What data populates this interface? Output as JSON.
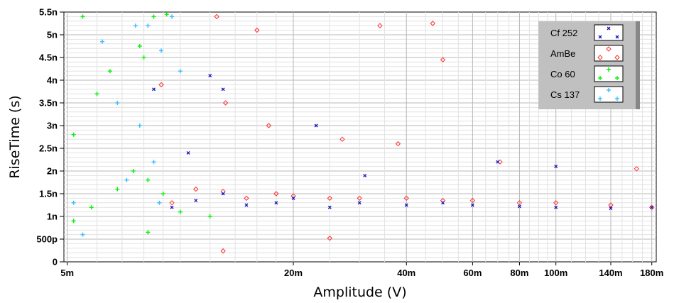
{
  "chart_data": {
    "type": "scatter",
    "title": "",
    "xlabel": "Amplitude (V)",
    "ylabel": "RiseTime (s)",
    "x_scale": "log",
    "xlim": [
      0.0049,
      0.185
    ],
    "ylim": [
      0,
      5.5e-09
    ],
    "grid": true,
    "legend_position": "top-right",
    "x_ticks": [
      {
        "value": 0.005,
        "label": "5m"
      },
      {
        "value": 0.02,
        "label": "20m"
      },
      {
        "value": 0.04,
        "label": "40m"
      },
      {
        "value": 0.06,
        "label": "60m"
      },
      {
        "value": 0.08,
        "label": "80m"
      },
      {
        "value": 0.1,
        "label": "100m"
      },
      {
        "value": 0.14,
        "label": "140m"
      },
      {
        "value": 0.18,
        "label": "180m"
      }
    ],
    "y_ticks": [
      {
        "value": 0,
        "label": "0"
      },
      {
        "value": 5e-10,
        "label": "500p"
      },
      {
        "value": 1e-09,
        "label": "1n"
      },
      {
        "value": 1.5e-09,
        "label": "1.5n"
      },
      {
        "value": 2e-09,
        "label": "2n"
      },
      {
        "value": 2.5e-09,
        "label": "2.5n"
      },
      {
        "value": 3e-09,
        "label": "3n"
      },
      {
        "value": 3.5e-09,
        "label": "3.5n"
      },
      {
        "value": 4e-09,
        "label": "4n"
      },
      {
        "value": 4.5e-09,
        "label": "4.5n"
      },
      {
        "value": 5e-09,
        "label": "5n"
      },
      {
        "value": 5.5e-09,
        "label": "5.5n"
      }
    ],
    "series": [
      {
        "name": "Cf 252",
        "marker": "x",
        "color": "#1010c0",
        "points": [
          [
            0.0095,
            1.2e-09
          ],
          [
            0.011,
            1.35e-09
          ],
          [
            0.013,
            1.5e-09
          ],
          [
            0.015,
            1.25e-09
          ],
          [
            0.018,
            1.3e-09
          ],
          [
            0.02,
            1.4e-09
          ],
          [
            0.025,
            1.2e-09
          ],
          [
            0.03,
            1.3e-09
          ],
          [
            0.04,
            1.25e-09
          ],
          [
            0.05,
            1.3e-09
          ],
          [
            0.06,
            1.25e-09
          ],
          [
            0.08,
            1.22e-09
          ],
          [
            0.1,
            1.2e-09
          ],
          [
            0.14,
            1.18e-09
          ],
          [
            0.18,
            1.2e-09
          ],
          [
            0.0105,
            2.4e-09
          ],
          [
            0.012,
            4.1e-09
          ],
          [
            0.013,
            3.8e-09
          ],
          [
            0.023,
            3e-09
          ],
          [
            0.031,
            1.9e-09
          ],
          [
            0.07,
            2.2e-09
          ],
          [
            0.1,
            2.1e-09
          ],
          [
            0.0085,
            3.8e-09
          ]
        ]
      },
      {
        "name": "AmBe",
        "marker": "diamond",
        "color": "#ff3030",
        "points": [
          [
            0.0095,
            1.3e-09
          ],
          [
            0.011,
            1.6e-09
          ],
          [
            0.013,
            1.55e-09
          ],
          [
            0.015,
            1.4e-09
          ],
          [
            0.018,
            1.5e-09
          ],
          [
            0.02,
            1.45e-09
          ],
          [
            0.025,
            1.4e-09
          ],
          [
            0.03,
            1.4e-09
          ],
          [
            0.04,
            1.4e-09
          ],
          [
            0.05,
            1.35e-09
          ],
          [
            0.06,
            1.35e-09
          ],
          [
            0.08,
            1.3e-09
          ],
          [
            0.1,
            1.3e-09
          ],
          [
            0.14,
            1.25e-09
          ],
          [
            0.18,
            1.2e-09
          ],
          [
            0.0125,
            5.4e-09
          ],
          [
            0.016,
            5.1e-09
          ],
          [
            0.034,
            5.2e-09
          ],
          [
            0.047,
            5.25e-09
          ],
          [
            0.05,
            4.45e-09
          ],
          [
            0.0089,
            3.9e-09
          ],
          [
            0.0172,
            3e-09
          ],
          [
            0.0132,
            3.5e-09
          ],
          [
            0.027,
            2.7e-09
          ],
          [
            0.038,
            2.6e-09
          ],
          [
            0.071,
            2.2e-09
          ],
          [
            0.164,
            2.05e-09
          ],
          [
            0.013,
            2.4e-10
          ],
          [
            0.025,
            5.2e-10
          ]
        ]
      },
      {
        "name": "Co 60",
        "marker": "plus",
        "color": "#10f010",
        "points": [
          [
            0.0055,
            5.4e-09
          ],
          [
            0.0085,
            5.4e-09
          ],
          [
            0.0092,
            5.45e-09
          ],
          [
            0.0052,
            2.8e-09
          ],
          [
            0.006,
            3.7e-09
          ],
          [
            0.0065,
            4.2e-09
          ],
          [
            0.0078,
            4.75e-09
          ],
          [
            0.008,
            4.5e-09
          ],
          [
            0.0082,
            1.8e-09
          ],
          [
            0.0075,
            2e-09
          ],
          [
            0.0068,
            1.6e-09
          ],
          [
            0.0058,
            1.2e-09
          ],
          [
            0.0052,
            9e-10
          ],
          [
            0.009,
            1.5e-09
          ],
          [
            0.01,
            1.1e-09
          ],
          [
            0.0082,
            6.5e-10
          ],
          [
            0.012,
            1e-09
          ]
        ]
      },
      {
        "name": "Cs 137",
        "marker": "plus",
        "color": "#40c0ff",
        "points": [
          [
            0.0052,
            1.3e-09
          ],
          [
            0.0055,
            6e-10
          ],
          [
            0.0062,
            4.85e-09
          ],
          [
            0.0076,
            5.2e-09
          ],
          [
            0.0089,
            4.65e-09
          ],
          [
            0.0082,
            5.2e-09
          ],
          [
            0.0095,
            5.4e-09
          ],
          [
            0.01,
            4.2e-09
          ],
          [
            0.0068,
            3.5e-09
          ],
          [
            0.0078,
            3e-09
          ],
          [
            0.0085,
            2.2e-09
          ],
          [
            0.0072,
            1.8e-09
          ],
          [
            0.0088,
            1.3e-09
          ]
        ]
      }
    ],
    "legend": [
      {
        "name": "Cf 252",
        "marker": "x",
        "color": "#1010c0"
      },
      {
        "name": "AmBe",
        "marker": "diamond",
        "color": "#ff3030"
      },
      {
        "name": "Co 60",
        "marker": "plus",
        "color": "#10f010"
      },
      {
        "name": "Cs 137",
        "marker": "plus",
        "color": "#40c0ff"
      }
    ]
  }
}
